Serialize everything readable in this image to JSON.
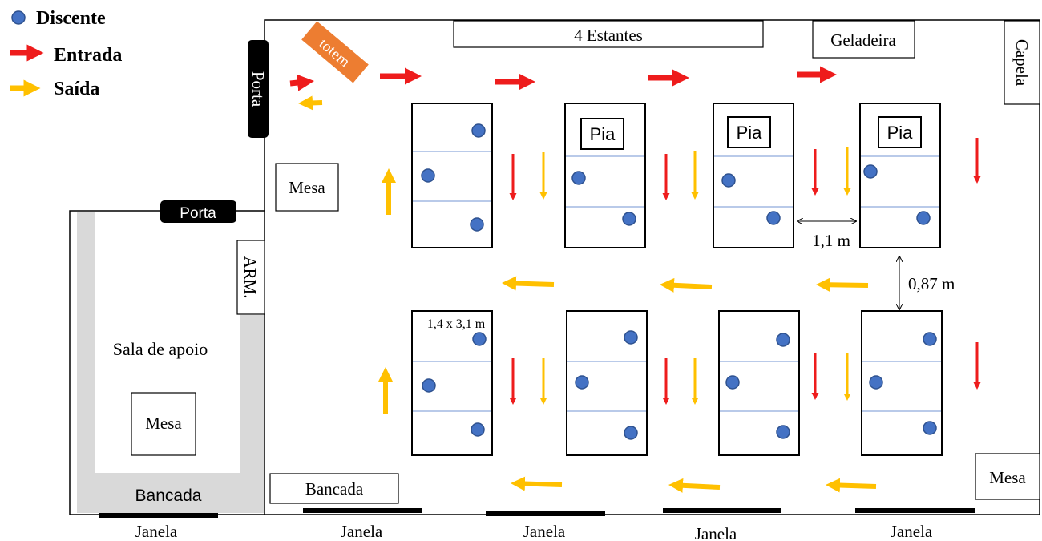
{
  "colors": {
    "entrada": "#ee1c1c",
    "saida": "#ffc000",
    "discente": "#4472c4",
    "discente_stroke": "#2f528f",
    "totem": "#ed7d31",
    "door": "#000000",
    "sala_floor": "#d9d9d9",
    "divider": "#8faadc"
  },
  "legend": {
    "discente": "Discente",
    "entrada": "Entrada",
    "saida": "Saída"
  },
  "labels": {
    "estantes": "4 Estantes",
    "geladeira": "Geladeira",
    "capela": "Capela",
    "totem": "totem",
    "porta_main": "Porta",
    "porta_sala": "Porta",
    "arm": "ARM.",
    "mesa_left": "Mesa",
    "mesa_sala": "Mesa",
    "mesa_right": "Mesa",
    "sala_apoio": "Sala de apoio",
    "bancada_sala": "Bancada",
    "bancada_main": "Bancada",
    "pia": "Pia",
    "bench_size": "1,4 x 3,1 m",
    "dim_horizontal": "1,1 m",
    "dim_vertical": "0,87 m",
    "janelas": [
      "Janela",
      "Janela",
      "Janela",
      "Janela",
      "Janela"
    ]
  }
}
